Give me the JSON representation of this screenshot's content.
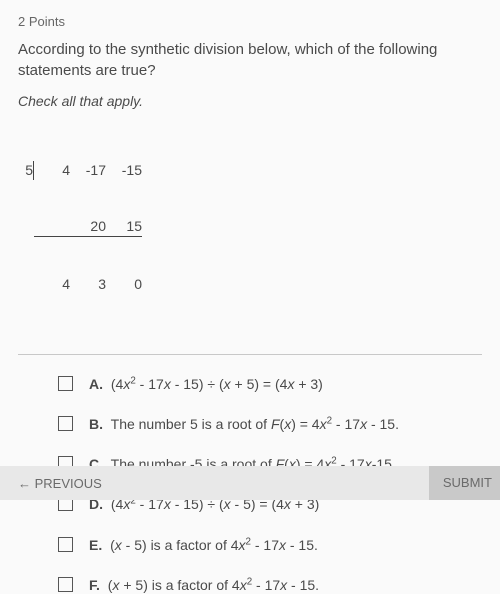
{
  "points_label": "2 Points",
  "question_text": "According to the synthetic division below, which of the following statements are true?",
  "instruction_text": "Check all that apply.",
  "syndiv": {
    "divisor": "5",
    "row1": [
      "4",
      "-17",
      "-15"
    ],
    "row2": [
      "",
      "20",
      "15"
    ],
    "row3": [
      "4",
      "3",
      "0"
    ]
  },
  "options": [
    {
      "letter": "A.",
      "html": "(4<i>x</i><sup>2</sup> - 17<i>x</i> - 15) ÷ (<i>x</i> + 5) = (4<i>x</i> + 3)"
    },
    {
      "letter": "B.",
      "html": "The number 5 is a root of <i>F</i>(<i>x</i>) = 4<i>x</i><sup>2</sup> - 17<i>x</i> - 15."
    },
    {
      "letter": "C.",
      "html": "The number -5 is a root of <i>F</i>(<i>x</i>) = 4<i>x</i><sup>2</sup> - 17<i>x</i>-15."
    },
    {
      "letter": "D.",
      "html": "(4<i>x</i><sup>2</sup> - 17<i>x</i> - 15) ÷ (<i>x</i> - 5) = (4<i>x</i> + 3)"
    },
    {
      "letter": "E.",
      "html": "(<i>x</i> - 5) is a factor of 4<i>x</i><sup>2</sup> - 17<i>x</i> - 15."
    },
    {
      "letter": "F.",
      "html": "(<i>x</i> + 5) is a factor of 4<i>x</i><sup>2</sup> - 17<i>x</i> - 15."
    }
  ],
  "footer": {
    "previous": "← PREVIOUS",
    "submit": "SUBMIT"
  }
}
